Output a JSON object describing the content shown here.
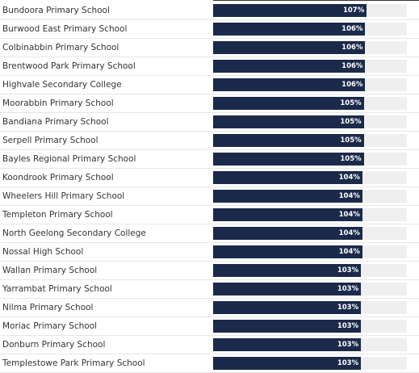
{
  "chart_data": {
    "type": "bar",
    "orientation": "horizontal",
    "categories": [
      "Bundoora Primary School",
      "Burwood East Primary School",
      "Colbinabbin Primary School",
      "Brentwood Park Primary School",
      "Highvale Secondary College",
      "Moorabbin Primary School",
      "Bandiana Primary School",
      "Serpell Primary School",
      "Bayles Regional Primary School",
      "Koondrook Primary School",
      "Wheelers Hill Primary School",
      "Templeton Primary School",
      "North Geelong Secondary College",
      "Nossal High School",
      "Wallan Primary School",
      "Yarrambat Primary School",
      "Nilma Primary School",
      "Moriac Primary School",
      "Donburn Primary School",
      "Templestowe Park Primary School"
    ],
    "values": [
      107,
      106,
      106,
      106,
      106,
      105,
      105,
      105,
      105,
      104,
      104,
      104,
      104,
      104,
      103,
      103,
      103,
      103,
      103,
      103
    ],
    "value_labels": [
      "107%",
      "106%",
      "106%",
      "106%",
      "106%",
      "105%",
      "105%",
      "105%",
      "105%",
      "104%",
      "104%",
      "104%",
      "104%",
      "104%",
      "103%",
      "103%",
      "103%",
      "103%",
      "103%",
      "103%"
    ],
    "xlim": [
      0,
      135
    ],
    "colors": {
      "bar": "#1b2a4a",
      "track": "#efefef",
      "label_text": "#333333",
      "value_text": "#ffffff"
    },
    "grid": false,
    "legend": "none"
  }
}
